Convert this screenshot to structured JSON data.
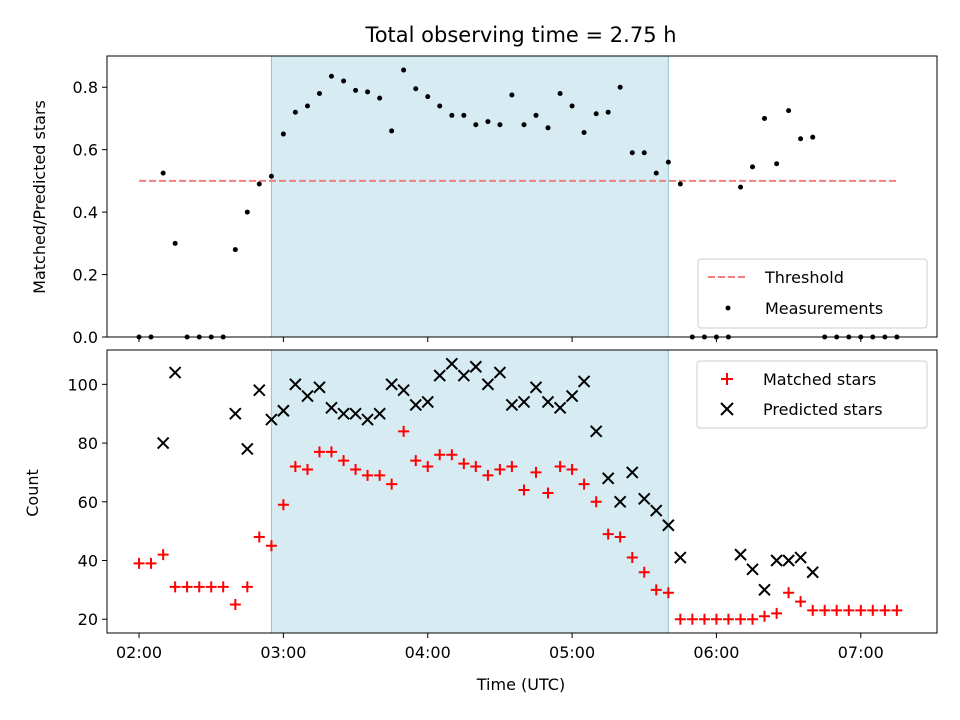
{
  "chart_data": {
    "type": "scatter",
    "title": "Total observing time = 2.75 h",
    "xlabel": "Time (UTC)",
    "x_ticks": [
      "02:00",
      "03:00",
      "04:00",
      "05:00",
      "06:00",
      "07:00"
    ],
    "x_tick_hours": [
      2,
      3,
      4,
      5,
      6,
      7
    ],
    "xlim_hours": [
      1.778,
      7.528
    ],
    "observing_window_hours": [
      2.917,
      5.667
    ],
    "observing_window_color": "#add8e6",
    "panels": [
      {
        "id": "ratio",
        "ylabel": "Matched/Predicted stars",
        "ylim": [
          0,
          0.9
        ],
        "y_ticks": [
          0,
          0.2,
          0.4,
          0.6,
          0.8
        ],
        "y_tick_labels": [
          "0.0",
          "0.2",
          "0.4",
          "0.6",
          "0.8"
        ],
        "legend_placement": "lower-right",
        "threshold": {
          "name": "Threshold",
          "value": 0.5,
          "x_start": 2.0,
          "x_end": 7.25,
          "color": "#f08080",
          "style": "dashed"
        },
        "series": [
          {
            "name": "Measurements",
            "marker": "dot",
            "color": "#000000",
            "x": [
              2.0,
              2.083,
              2.167,
              2.25,
              2.333,
              2.417,
              2.5,
              2.583,
              2.667,
              2.75,
              2.833,
              2.917,
              3.0,
              3.083,
              3.167,
              3.25,
              3.333,
              3.417,
              3.5,
              3.583,
              3.667,
              3.75,
              3.833,
              3.917,
              4.0,
              4.083,
              4.167,
              4.25,
              4.333,
              4.417,
              4.5,
              4.583,
              4.667,
              4.75,
              4.833,
              4.917,
              5.0,
              5.083,
              5.167,
              5.25,
              5.333,
              5.417,
              5.5,
              5.583,
              5.667,
              5.75,
              5.833,
              5.917,
              6.0,
              6.083,
              6.167,
              6.25,
              6.333,
              6.417,
              6.5,
              6.583,
              6.667,
              6.75,
              6.833,
              6.917,
              7.0,
              7.083,
              7.167,
              7.25
            ],
            "y": [
              0.0,
              0.0,
              0.525,
              0.3,
              0.0,
              0.0,
              0.0,
              0.0,
              0.28,
              0.4,
              0.49,
              0.515,
              0.65,
              0.72,
              0.74,
              0.78,
              0.835,
              0.82,
              0.79,
              0.785,
              0.765,
              0.66,
              0.855,
              0.795,
              0.77,
              0.74,
              0.71,
              0.71,
              0.68,
              0.69,
              0.68,
              0.775,
              0.68,
              0.71,
              0.67,
              0.78,
              0.74,
              0.655,
              0.715,
              0.72,
              0.8,
              0.59,
              0.59,
              0.525,
              0.56,
              0.49,
              0.0,
              0.0,
              0.0,
              0.0,
              0.48,
              0.545,
              0.7,
              0.555,
              0.725,
              0.635,
              0.64,
              0.0,
              0.0,
              0.0,
              0.0,
              0.0,
              0.0,
              0.0
            ]
          }
        ]
      },
      {
        "id": "counts",
        "ylabel": "Count",
        "ylim": [
          15.3,
          111.7
        ],
        "y_ticks": [
          20,
          40,
          60,
          80,
          100
        ],
        "y_tick_labels": [
          "20",
          "40",
          "60",
          "80",
          "100"
        ],
        "legend_placement": "top-right",
        "series": [
          {
            "name": "Matched stars",
            "marker": "plus",
            "color": "#ff0000",
            "x": [
              2.0,
              2.083,
              2.167,
              2.25,
              2.333,
              2.417,
              2.5,
              2.583,
              2.667,
              2.75,
              2.833,
              2.917,
              3.0,
              3.083,
              3.167,
              3.25,
              3.333,
              3.417,
              3.5,
              3.583,
              3.667,
              3.75,
              3.833,
              3.917,
              4.0,
              4.083,
              4.167,
              4.25,
              4.333,
              4.417,
              4.5,
              4.583,
              4.667,
              4.75,
              4.833,
              4.917,
              5.0,
              5.083,
              5.167,
              5.25,
              5.333,
              5.417,
              5.5,
              5.583,
              5.667,
              5.75,
              5.833,
              5.917,
              6.0,
              6.083,
              6.167,
              6.25,
              6.333,
              6.417,
              6.5,
              6.583,
              6.667,
              6.75,
              6.833,
              6.917,
              7.0,
              7.083,
              7.167,
              7.25
            ],
            "y": [
              39,
              39,
              42,
              31,
              31,
              31,
              31,
              31,
              25,
              31,
              48,
              45,
              59,
              72,
              71,
              77,
              77,
              74,
              71,
              69,
              69,
              66,
              84,
              74,
              72,
              76,
              76,
              73,
              72,
              69,
              71,
              72,
              64,
              70,
              63,
              72,
              71,
              66,
              60,
              49,
              48,
              41,
              36,
              30,
              29,
              20,
              20,
              20,
              20,
              20,
              20,
              20,
              21,
              22,
              29,
              26,
              23,
              23,
              23,
              23,
              23,
              23,
              23,
              23
            ]
          },
          {
            "name": "Predicted stars",
            "marker": "x",
            "color": "#000000",
            "x": [
              2.167,
              2.25,
              2.667,
              2.75,
              2.833,
              2.917,
              3.0,
              3.083,
              3.167,
              3.25,
              3.333,
              3.417,
              3.5,
              3.583,
              3.667,
              3.75,
              3.833,
              3.917,
              4.0,
              4.083,
              4.167,
              4.25,
              4.333,
              4.417,
              4.5,
              4.583,
              4.667,
              4.75,
              4.833,
              4.917,
              5.0,
              5.083,
              5.167,
              5.25,
              5.333,
              5.417,
              5.5,
              5.583,
              5.667,
              5.75,
              6.167,
              6.25,
              6.333,
              6.417,
              6.5,
              6.583,
              6.667
            ],
            "y": [
              80,
              104,
              90,
              78,
              98,
              88,
              91,
              100,
              96,
              99,
              92,
              90,
              90,
              88,
              90,
              100,
              98,
              93,
              94,
              103,
              107,
              103,
              106,
              100,
              104,
              93,
              94,
              99,
              94,
              92,
              96,
              101,
              84,
              68,
              60,
              70,
              61,
              57,
              52,
              41,
              42,
              37,
              30,
              40,
              40,
              41,
              36
            ]
          }
        ]
      }
    ]
  }
}
